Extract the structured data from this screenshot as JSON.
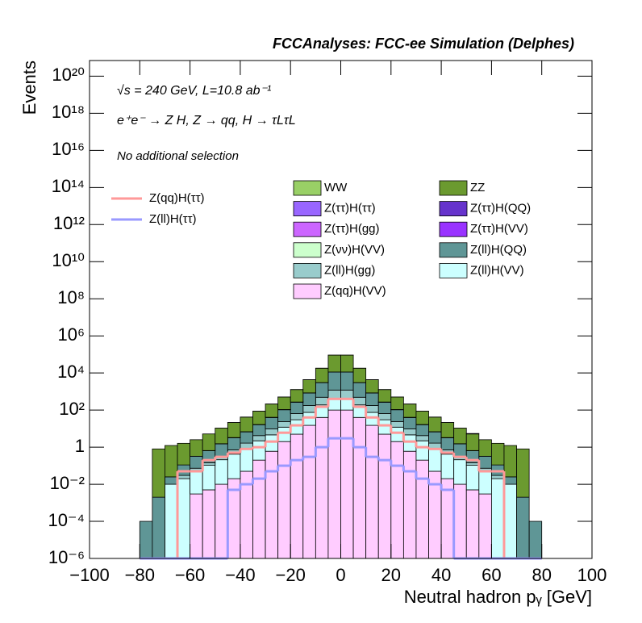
{
  "chart_data": {
    "type": "stacked-histogram",
    "title": "FCCAnalyses: FCC-ee Simulation (Delphes)",
    "annotations": [
      "√s = 240 GeV, L=10.8 ab⁻¹",
      "e⁺e⁻ → Z H, Z → qq, H → τLτL",
      "No additional selection"
    ],
    "x_label": "Neutral hadron pᵧ [GeV]",
    "y_label": "Events",
    "log_y": true,
    "xlim": [
      -100,
      100
    ],
    "ylim": [
      1e-06,
      7e+20
    ],
    "xticks": [
      {
        "value": -100,
        "label": "−100"
      },
      {
        "value": -80,
        "label": "−80"
      },
      {
        "value": -60,
        "label": "−60"
      },
      {
        "value": -40,
        "label": "−40"
      },
      {
        "value": -20,
        "label": "−20"
      },
      0,
      20,
      40,
      60,
      80,
      100
    ],
    "yticks": [
      {
        "value": 1e-06,
        "label": "10⁻⁶"
      },
      {
        "value": 0.0001,
        "label": "10⁻⁴"
      },
      {
        "value": 0.01,
        "label": "10⁻²"
      },
      1,
      {
        "value": 100,
        "label": "10²"
      },
      {
        "value": 10000,
        "label": "10⁴"
      },
      {
        "value": 1000000.0,
        "label": "10⁶"
      },
      {
        "value": 100000000.0,
        "label": "10⁸"
      },
      {
        "value": 10000000000.0,
        "label": "10¹⁰"
      },
      {
        "value": 1000000000000.0,
        "label": "10¹²"
      },
      {
        "value": 100000000000000.0,
        "label": "10¹⁴"
      },
      {
        "value": 1e+16,
        "label": "10¹⁶"
      },
      {
        "value": 1e+18,
        "label": "10¹⁸"
      },
      {
        "value": 1e+20,
        "label": "10²⁰"
      }
    ],
    "bins": [
      -80,
      -75,
      -70,
      -65,
      -60,
      -55,
      -50,
      -45,
      -40,
      -35,
      -30,
      -25,
      -20,
      -15,
      -10,
      -5,
      0,
      5,
      10,
      15,
      20,
      25,
      30,
      35,
      40,
      45,
      50,
      55,
      60,
      65,
      70,
      75,
      80
    ],
    "series": [
      {
        "name": "WW",
        "color": "#99d066",
        "values": [
          0,
          0,
          0,
          0,
          0,
          0,
          0.01,
          0.02,
          0.03,
          0.05,
          0.1,
          0.2,
          0.4,
          0.8,
          1.5,
          3,
          3,
          1.5,
          0.8,
          0.4,
          0.2,
          0.1,
          0.05,
          0.03,
          0.02,
          0.01,
          0.3,
          0,
          0,
          0,
          0,
          0
        ]
      },
      {
        "name": "ZZ",
        "color": "#6b9a2f",
        "values": [
          0,
          0.8,
          1.2,
          1.5,
          2.2,
          4.5,
          9,
          18,
          35,
          70,
          170,
          400,
          1000,
          3500,
          15000,
          80000,
          80000,
          15000,
          3500,
          1000,
          400,
          170,
          70,
          35,
          18,
          9,
          4.5,
          2.2,
          1.5,
          1.2,
          0.8,
          0
        ]
      },
      {
        "name": "Z(ττ)H(ττ)",
        "color": "#9966ff",
        "values": [
          0,
          0,
          0,
          0,
          0,
          0,
          0,
          0,
          0.005,
          0.01,
          0.02,
          0.03,
          0.05,
          0.1,
          0.2,
          0.3,
          0.3,
          0.2,
          0.1,
          0.05,
          0.03,
          0.02,
          0.01,
          0.005,
          0,
          0,
          0,
          0,
          0,
          0,
          0,
          0
        ]
      },
      {
        "name": "Z(ττ)H(QQ)",
        "color": "#6633cc",
        "values": [
          0,
          0,
          0,
          0,
          0,
          0,
          0.001,
          0.003,
          0.01,
          0.03,
          0.1,
          0.3,
          0.8,
          2,
          5,
          10,
          10,
          5,
          2,
          0.8,
          0.3,
          0.1,
          0.03,
          0.01,
          0.003,
          0.001,
          0,
          0,
          0,
          0,
          0,
          0
        ]
      },
      {
        "name": "Z(ττ)H(gg)",
        "color": "#cc66ff",
        "values": [
          0,
          0,
          0,
          0,
          0,
          0,
          0,
          0.01,
          0.02,
          0.05,
          0.1,
          0.3,
          0.8,
          2,
          4,
          8,
          8,
          4,
          2,
          0.8,
          0.3,
          0.1,
          0.05,
          0.02,
          0.01,
          0,
          0,
          0,
          0,
          0,
          0,
          0
        ]
      },
      {
        "name": "Z(ττ)H(VV)",
        "color": "#9933ff",
        "values": [
          0,
          0,
          0,
          0,
          0,
          0,
          0,
          0.01,
          0.02,
          0.05,
          0.1,
          0.2,
          0.5,
          1,
          2,
          3,
          3,
          2,
          1,
          0.5,
          0.2,
          0.1,
          0.05,
          0.02,
          0.01,
          0,
          0,
          0,
          0,
          0,
          0,
          0
        ]
      },
      {
        "name": "Z(νν)H(VV)",
        "color": "#ccffcc",
        "values": [
          0,
          0,
          0,
          0,
          0,
          0.01,
          0.02,
          0.05,
          0.1,
          0.3,
          0.8,
          2,
          5,
          12,
          30,
          60,
          60,
          30,
          12,
          5,
          2,
          0.8,
          0.3,
          0.1,
          0.05,
          0.02,
          0.01,
          0,
          0,
          0,
          0,
          0
        ]
      },
      {
        "name": "Z(ll)H(QQ)",
        "color": "#5f9696",
        "values": [
          0.0001,
          0.002,
          0.015,
          0.08,
          0.25,
          0.5,
          1.2,
          2.5,
          5,
          12,
          30,
          80,
          200,
          650,
          2500,
          10000,
          10000,
          2500,
          650,
          200,
          80,
          30,
          12,
          5,
          2.5,
          1.2,
          0.5,
          0.25,
          0.08,
          0.015,
          0.002,
          0.0001
        ]
      },
      {
        "name": "Z(ll)H(gg)",
        "color": "#99cccc",
        "values": [
          0,
          0,
          0,
          0.01,
          0.02,
          0.04,
          0.1,
          0.3,
          0.8,
          2,
          5,
          12,
          35,
          100,
          300,
          800,
          800,
          300,
          100,
          35,
          12,
          5,
          2,
          0.8,
          0.3,
          0.1,
          0.04,
          0.02,
          0.01,
          0,
          0,
          0
        ]
      },
      {
        "name": "Z(ll)H(VV)",
        "color": "#ccffff",
        "values": [
          0,
          0,
          0.01,
          0.02,
          0.05,
          0.1,
          0.2,
          0.4,
          0.8,
          2,
          4,
          10,
          25,
          60,
          150,
          300,
          300,
          150,
          60,
          25,
          10,
          4,
          2,
          0.8,
          0.4,
          0.2,
          0.1,
          0.05,
          0.02,
          0.01,
          0,
          0
        ]
      },
      {
        "name": "Z(qq)H(VV)",
        "color": "#ffccff",
        "values": [
          0,
          0,
          0,
          0,
          0.003,
          0.005,
          0.01,
          0.02,
          0.05,
          0.2,
          0.6,
          2,
          5,
          15,
          40,
          100,
          100,
          40,
          15,
          5,
          2,
          0.6,
          0.2,
          0.05,
          0.02,
          0.01,
          0.005,
          0.003,
          0,
          0,
          0,
          0
        ]
      }
    ],
    "overlays": [
      {
        "name": "Z(qq)H(ττ)",
        "color": "#ff9999",
        "values": [
          0,
          0,
          0,
          0.05,
          0.05,
          0.2,
          0.3,
          0.5,
          0.8,
          1,
          2,
          6,
          15,
          40,
          150,
          400,
          400,
          150,
          40,
          15,
          6,
          2,
          1,
          0.8,
          0.5,
          0.3,
          0.2,
          0.05,
          0.05,
          0,
          0,
          0
        ]
      },
      {
        "name": "Z(ll)H(ττ)",
        "color": "#9999ff",
        "values": [
          0,
          0,
          0,
          0,
          0,
          0,
          0,
          0.005,
          0.01,
          0.02,
          0.05,
          0.1,
          0.2,
          0.3,
          1,
          3,
          3,
          1,
          0.3,
          0.2,
          0.1,
          0.05,
          0.02,
          0.01,
          0.005,
          0,
          0,
          0,
          0,
          0,
          0,
          0
        ]
      }
    ]
  }
}
